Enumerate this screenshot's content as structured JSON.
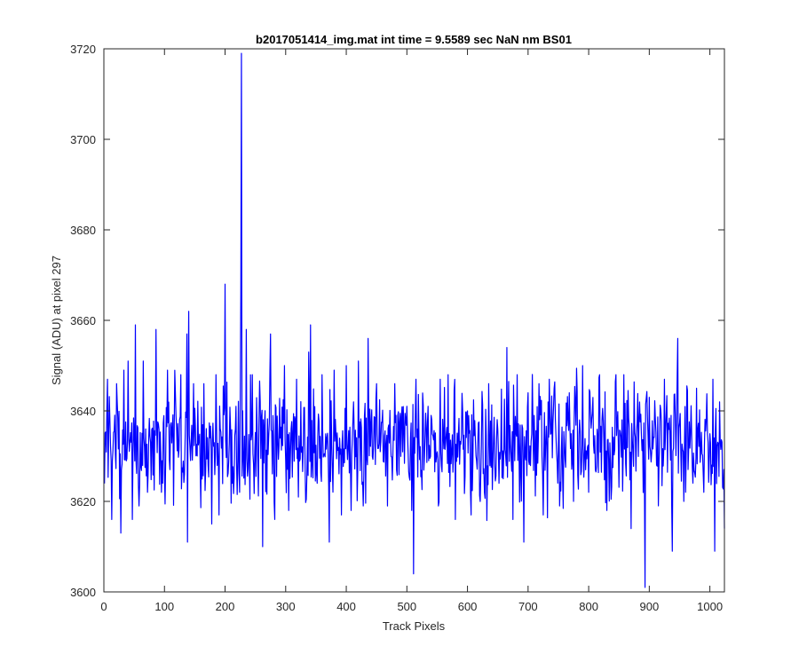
{
  "chart_data": {
    "type": "line",
    "title": "b2017051414_img.mat int time = 9.5589 sec  NaN nm BS01",
    "xlabel": "Track Pixels",
    "ylabel": "Signal (ADU) at pixel 297",
    "xlim": [
      0,
      1024
    ],
    "ylim": [
      3600,
      3720
    ],
    "xticks": [
      0,
      100,
      200,
      300,
      400,
      500,
      600,
      700,
      800,
      900,
      1000
    ],
    "yticks": [
      3600,
      3620,
      3640,
      3660,
      3680,
      3700,
      3720
    ],
    "grid": false,
    "series": [
      {
        "color": "#0000ff",
        "x_start": 1,
        "x_step": 1,
        "baseline": 3633,
        "noise_amplitude": 6,
        "noise_seed": 297,
        "notable_points": [
          {
            "x": 6,
            "y": 3647
          },
          {
            "x": 13,
            "y": 3616
          },
          {
            "x": 21,
            "y": 3646
          },
          {
            "x": 28,
            "y": 3613
          },
          {
            "x": 33,
            "y": 3649
          },
          {
            "x": 40,
            "y": 3651
          },
          {
            "x": 47,
            "y": 3616
          },
          {
            "x": 52,
            "y": 3659
          },
          {
            "x": 58,
            "y": 3619
          },
          {
            "x": 65,
            "y": 3651
          },
          {
            "x": 72,
            "y": 3622
          },
          {
            "x": 86,
            "y": 3658
          },
          {
            "x": 95,
            "y": 3622
          },
          {
            "x": 105,
            "y": 3649
          },
          {
            "x": 118,
            "y": 3644
          },
          {
            "x": 127,
            "y": 3648
          },
          {
            "x": 133,
            "y": 3626
          },
          {
            "x": 137,
            "y": 3657
          },
          {
            "x": 138,
            "y": 3611
          },
          {
            "x": 140,
            "y": 3662
          },
          {
            "x": 148,
            "y": 3646
          },
          {
            "x": 165,
            "y": 3646
          },
          {
            "x": 178,
            "y": 3615
          },
          {
            "x": 185,
            "y": 3648
          },
          {
            "x": 190,
            "y": 3617
          },
          {
            "x": 200,
            "y": 3668
          },
          {
            "x": 212,
            "y": 3624
          },
          {
            "x": 218,
            "y": 3641
          },
          {
            "x": 224,
            "y": 3622
          },
          {
            "x": 226,
            "y": 3666
          },
          {
            "x": 227,
            "y": 3719
          },
          {
            "x": 229,
            "y": 3640
          },
          {
            "x": 235,
            "y": 3658
          },
          {
            "x": 245,
            "y": 3648
          },
          {
            "x": 258,
            "y": 3642
          },
          {
            "x": 262,
            "y": 3610
          },
          {
            "x": 275,
            "y": 3657
          },
          {
            "x": 282,
            "y": 3616
          },
          {
            "x": 298,
            "y": 3650
          },
          {
            "x": 305,
            "y": 3618
          },
          {
            "x": 318,
            "y": 3647
          },
          {
            "x": 338,
            "y": 3653
          },
          {
            "x": 341,
            "y": 3659
          },
          {
            "x": 352,
            "y": 3624
          },
          {
            "x": 360,
            "y": 3648
          },
          {
            "x": 372,
            "y": 3611
          },
          {
            "x": 380,
            "y": 3649
          },
          {
            "x": 392,
            "y": 3617
          },
          {
            "x": 400,
            "y": 3650
          },
          {
            "x": 408,
            "y": 3618
          },
          {
            "x": 420,
            "y": 3651
          },
          {
            "x": 428,
            "y": 3619
          },
          {
            "x": 436,
            "y": 3656
          },
          {
            "x": 450,
            "y": 3646
          },
          {
            "x": 468,
            "y": 3619
          },
          {
            "x": 480,
            "y": 3646
          },
          {
            "x": 500,
            "y": 3641
          },
          {
            "x": 508,
            "y": 3618
          },
          {
            "x": 511,
            "y": 3604
          },
          {
            "x": 515,
            "y": 3647
          },
          {
            "x": 520,
            "y": 3634
          },
          {
            "x": 535,
            "y": 3641
          },
          {
            "x": 552,
            "y": 3619
          },
          {
            "x": 555,
            "y": 3647
          },
          {
            "x": 568,
            "y": 3648
          },
          {
            "x": 580,
            "y": 3616
          },
          {
            "x": 600,
            "y": 3640
          },
          {
            "x": 606,
            "y": 3617
          },
          {
            "x": 628,
            "y": 3622
          },
          {
            "x": 635,
            "y": 3646
          },
          {
            "x": 652,
            "y": 3624
          },
          {
            "x": 665,
            "y": 3654
          },
          {
            "x": 675,
            "y": 3616
          },
          {
            "x": 682,
            "y": 3648
          },
          {
            "x": 693,
            "y": 3611
          },
          {
            "x": 700,
            "y": 3644
          },
          {
            "x": 718,
            "y": 3646
          },
          {
            "x": 725,
            "y": 3617
          },
          {
            "x": 735,
            "y": 3647
          },
          {
            "x": 752,
            "y": 3619
          },
          {
            "x": 768,
            "y": 3644
          },
          {
            "x": 775,
            "y": 3620
          },
          {
            "x": 790,
            "y": 3650
          },
          {
            "x": 800,
            "y": 3622
          },
          {
            "x": 818,
            "y": 3648
          },
          {
            "x": 830,
            "y": 3618
          },
          {
            "x": 845,
            "y": 3648
          },
          {
            "x": 858,
            "y": 3648
          },
          {
            "x": 870,
            "y": 3614
          },
          {
            "x": 893,
            "y": 3601
          },
          {
            "x": 900,
            "y": 3643
          },
          {
            "x": 912,
            "y": 3628
          },
          {
            "x": 925,
            "y": 3647
          },
          {
            "x": 938,
            "y": 3609
          },
          {
            "x": 947,
            "y": 3656
          },
          {
            "x": 960,
            "y": 3622
          },
          {
            "x": 978,
            "y": 3645
          },
          {
            "x": 990,
            "y": 3622
          },
          {
            "x": 1005,
            "y": 3647
          },
          {
            "x": 1008,
            "y": 3609
          },
          {
            "x": 1016,
            "y": 3642
          },
          {
            "x": 1024,
            "y": 3614
          }
        ]
      }
    ]
  }
}
